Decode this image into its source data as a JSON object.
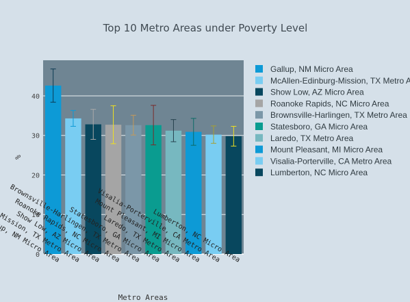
{
  "chart_data": {
    "type": "bar",
    "title": "Top 10 Metro Areas under Poverty Level",
    "xlabel": "Metro Areas",
    "ylabel": "%",
    "ylim": [
      0,
      49
    ],
    "yticks": [
      0,
      10,
      20,
      30,
      40
    ],
    "grid": true,
    "legend_position": "right",
    "plot_bgcolor": "#6f8593",
    "paper_bgcolor": "#d5e0e9",
    "series": [
      {
        "name": "Gallup, NM Micro Area",
        "value": 42.6,
        "error": 4.2,
        "color": "#0d9ad6",
        "error_color": "#0c3a52"
      },
      {
        "name": "McAllen-Edinburg-Mission, TX Metro Area",
        "value": 34.3,
        "error": 2.0,
        "color": "#79cdf2",
        "error_color": "#0d9ad6"
      },
      {
        "name": "Show Low, AZ Micro Area",
        "value": 32.8,
        "error": 3.8,
        "color": "#08475e",
        "error_color": "#a8a8a8"
      },
      {
        "name": "Roanoke Rapids, NC Micro Area",
        "value": 32.7,
        "error": 4.8,
        "color": "#a5a5a5",
        "error_color": "#f0e020"
      },
      {
        "name": "Brownsville-Harlingen, TX Metro Area",
        "value": 32.6,
        "error": 2.5,
        "color": "#7b97a8",
        "error_color": "#c59a5a"
      },
      {
        "name": "Statesboro, GA Micro Area",
        "value": 32.6,
        "error": 5.0,
        "color": "#0a9c90",
        "error_color": "#7a2b2b"
      },
      {
        "name": "Laredo, TX Metro Area",
        "value": 31.2,
        "error": 2.8,
        "color": "#77b8c0",
        "error_color": "#26414d"
      },
      {
        "name": "Mount Pleasant, MI Micro Area",
        "value": 30.9,
        "error": 3.4,
        "color": "#0d9ad6",
        "error_color": "#0c6b66"
      },
      {
        "name": "Visalia-Porterville, CA Metro Area",
        "value": 30.2,
        "error": 2.2,
        "color": "#79cdf2",
        "error_color": "#a8a030"
      },
      {
        "name": "Lumberton, NC Micro Area",
        "value": 29.8,
        "error": 2.5,
        "color": "#08475e",
        "error_color": "#f0e020"
      }
    ]
  }
}
